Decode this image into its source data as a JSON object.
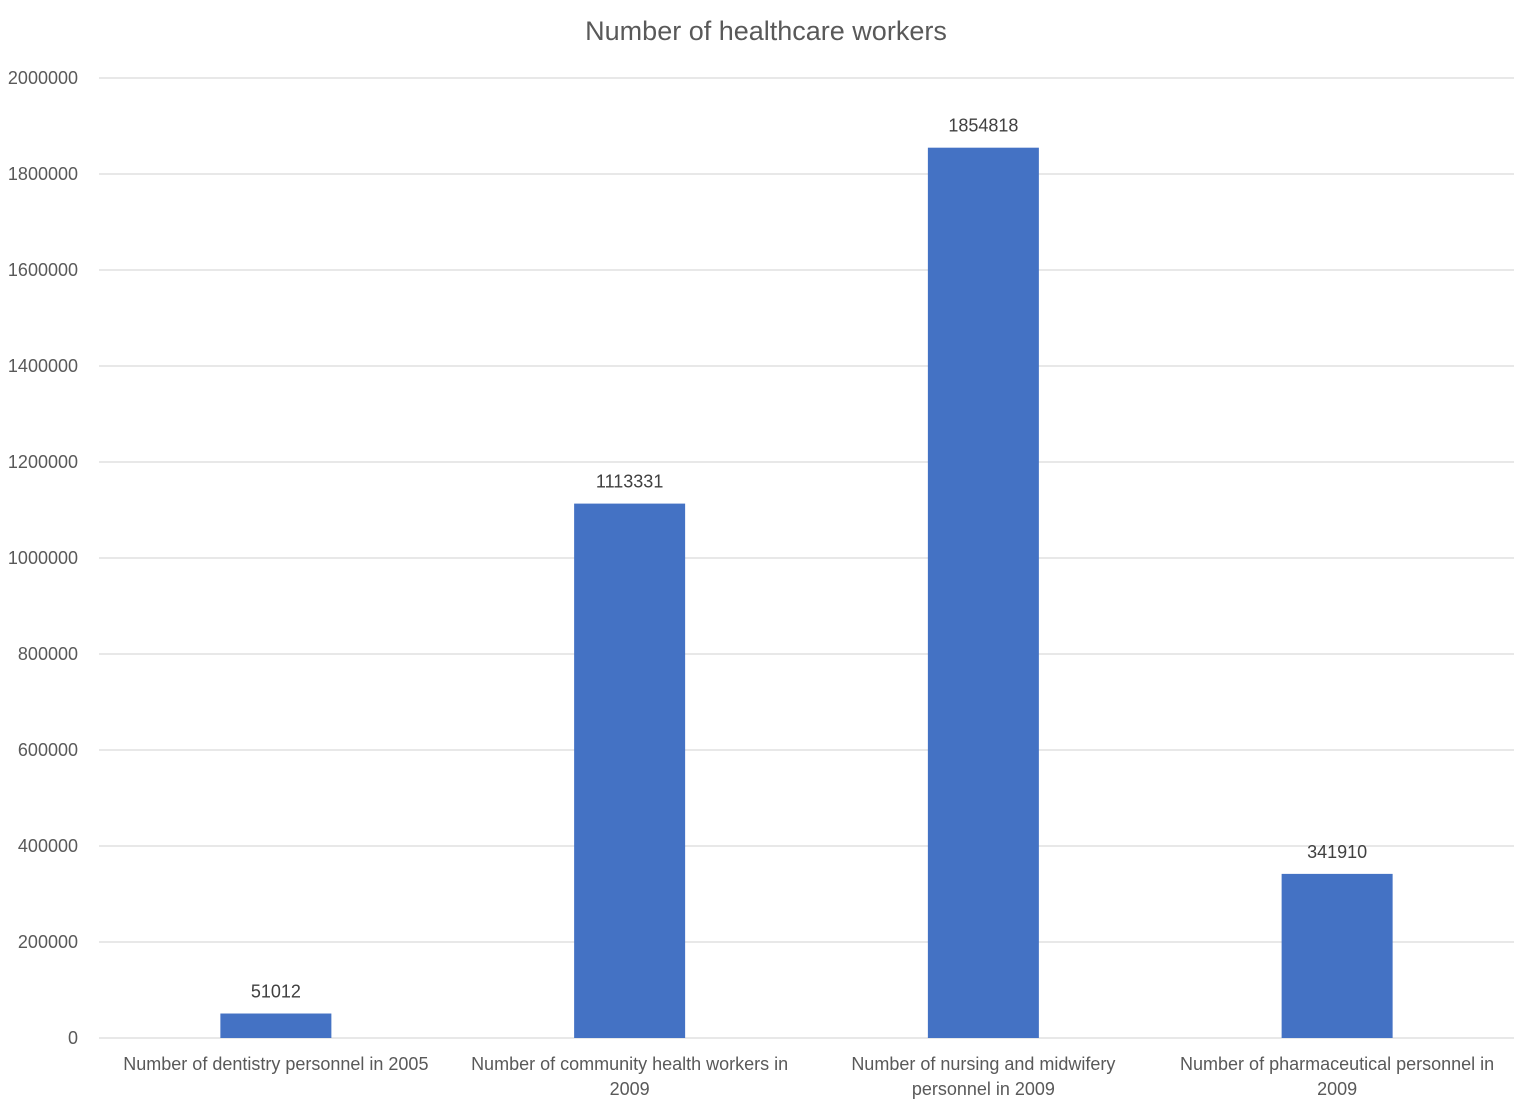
{
  "chart_data": {
    "type": "bar",
    "title": "Number of healthcare workers",
    "xlabel": "",
    "ylabel": "",
    "categories": [
      [
        "Number of dentistry personnel in 2005"
      ],
      [
        "Number of community health workers in",
        "2009"
      ],
      [
        "Number of nursing and midwifery",
        "personnel in 2009"
      ],
      [
        "Number of pharmaceutical personnel in",
        "2009"
      ]
    ],
    "values": [
      51012,
      1113331,
      1854818,
      341910
    ],
    "data_labels": [
      "51012",
      "1113331",
      "1854818",
      "341910"
    ],
    "ylim": [
      0,
      2000000
    ],
    "yticks": [
      0,
      200000,
      400000,
      600000,
      800000,
      1000000,
      1200000,
      1400000,
      1600000,
      1800000,
      2000000
    ],
    "ytick_labels": [
      "0",
      "200000",
      "400000",
      "600000",
      "800000",
      "1000000",
      "1200000",
      "1400000",
      "1600000",
      "1800000",
      "2000000"
    ],
    "grid": true,
    "legend": "none",
    "colors": {
      "bar": "#4472c4"
    }
  }
}
